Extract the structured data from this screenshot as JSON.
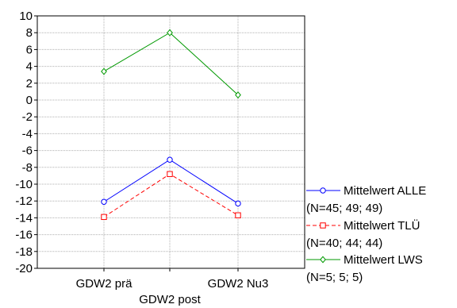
{
  "chart_data": {
    "type": "line",
    "categories": [
      "GDW2 prä",
      "GDW2 post",
      "GDW2 Nu3"
    ],
    "ylim": [
      -20,
      10
    ],
    "yticks": [
      10,
      8,
      6,
      4,
      2,
      0,
      -2,
      -4,
      -6,
      -8,
      -10,
      -12,
      -14,
      -16,
      -18,
      -20
    ],
    "grid": true,
    "legend_position": "bottom-right",
    "series": [
      {
        "name": "Mittelwert ALLE",
        "note": "(N=45; 49; 49)",
        "values": [
          -12.1,
          -7.1,
          -12.3
        ],
        "color": "#0000ff",
        "dash": false,
        "marker": "circle"
      },
      {
        "name": "Mittelwert TLÜ",
        "note": "(N=40; 44; 44)",
        "values": [
          -13.9,
          -8.8,
          -13.7
        ],
        "color": "#ff0000",
        "dash": true,
        "marker": "square"
      },
      {
        "name": "Mittelwert LWS",
        "note": "(N=5; 5; 5)",
        "values": [
          3.4,
          8.0,
          0.6
        ],
        "color": "#009900",
        "dash": false,
        "marker": "diamond"
      }
    ]
  }
}
